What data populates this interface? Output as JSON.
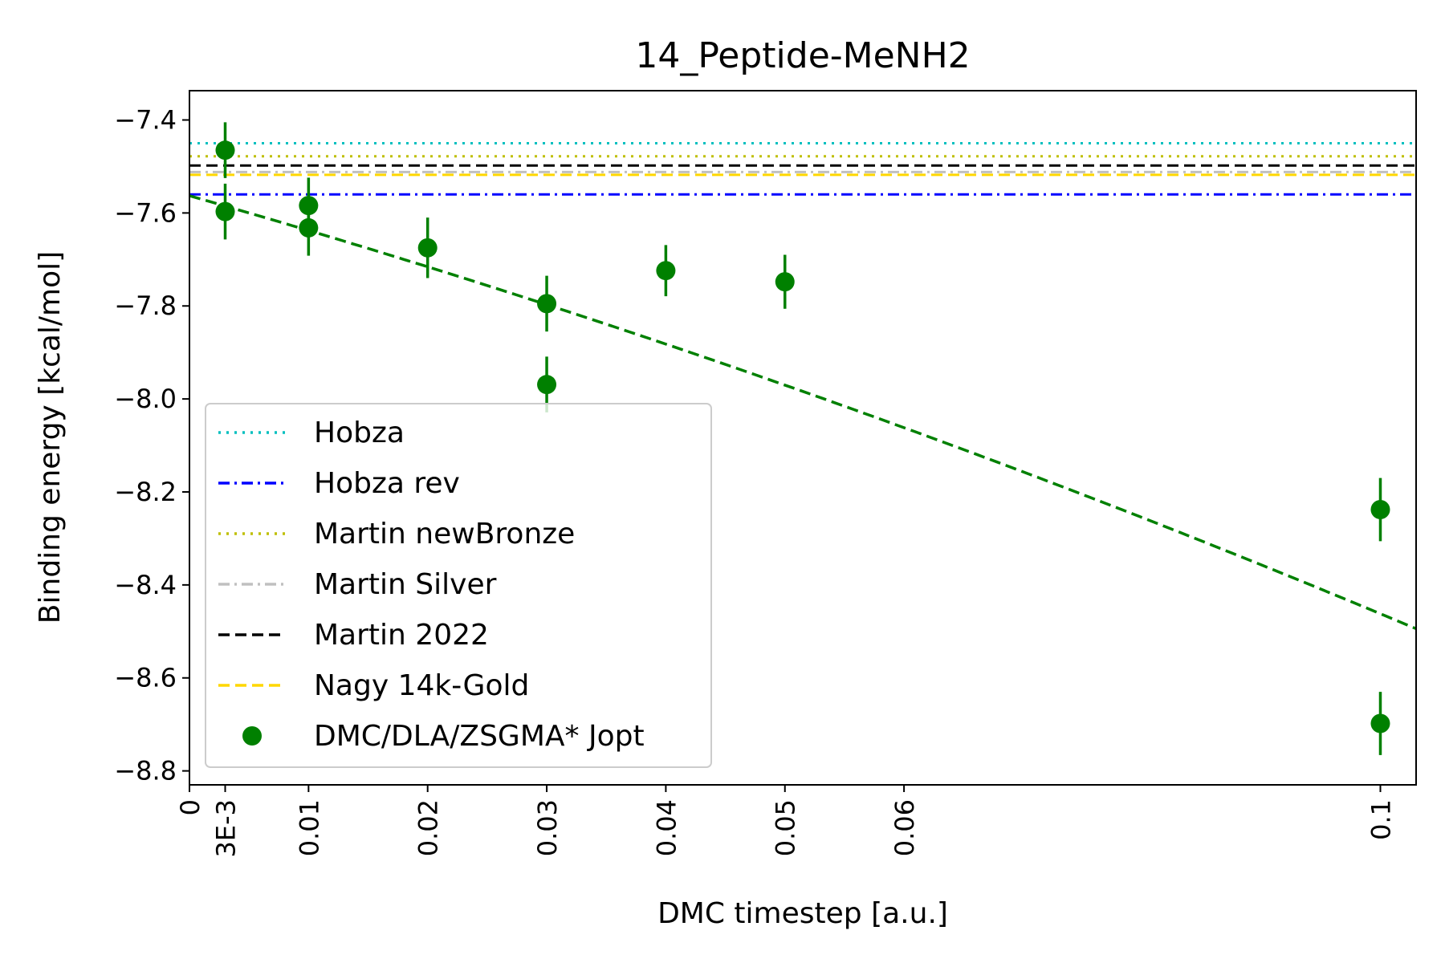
{
  "chart_data": {
    "type": "scatter",
    "title": "14_Peptide-MeNH2",
    "xlabel": "DMC timestep [a.u.]",
    "ylabel": "Binding energy [kcal/mol]",
    "xlim": [
      0,
      0.103
    ],
    "ylim": [
      -8.83,
      -7.337
    ],
    "x_ticks": [
      {
        "value": 0,
        "label": "0"
      },
      {
        "value": 0.003,
        "label": "3E-3"
      },
      {
        "value": 0.01,
        "label": "0.01"
      },
      {
        "value": 0.02,
        "label": "0.02"
      },
      {
        "value": 0.03,
        "label": "0.03"
      },
      {
        "value": 0.04,
        "label": "0.04"
      },
      {
        "value": 0.05,
        "label": "0.05"
      },
      {
        "value": 0.06,
        "label": "0.06"
      },
      {
        "value": 0.1,
        "label": "0.1"
      }
    ],
    "y_ticks": [
      {
        "value": -7.4,
        "label": "−7.4"
      },
      {
        "value": -7.6,
        "label": "−7.6"
      },
      {
        "value": -7.8,
        "label": "−7.8"
      },
      {
        "value": -8.0,
        "label": "−8.0"
      },
      {
        "value": -8.2,
        "label": "−8.2"
      },
      {
        "value": -8.4,
        "label": "−8.4"
      },
      {
        "value": -8.6,
        "label": "−8.6"
      },
      {
        "value": -8.8,
        "label": "−8.8"
      }
    ],
    "grid": false,
    "legend_position": "lower-left",
    "reference_lines": [
      {
        "name": "Hobza",
        "y": -7.45,
        "color": "#00bfbf",
        "style": "dotted"
      },
      {
        "name": "Hobza rev",
        "y": -7.56,
        "color": "#0000ff",
        "style": "dashdot"
      },
      {
        "name": "Martin newBronze",
        "y": -7.478,
        "color": "#bfbf00",
        "style": "dotted"
      },
      {
        "name": "Martin Silver",
        "y": -7.512,
        "color": "#c0c0c0",
        "style": "dashdot"
      },
      {
        "name": "Martin 2022",
        "y": -7.498,
        "color": "#000000",
        "style": "dashed"
      },
      {
        "name": "Nagy 14k-Gold",
        "y": -7.518,
        "color": "#ffd700",
        "style": "dashed"
      }
    ],
    "series": [
      {
        "name": "DMC/DLA/ZSGMA* Jopt",
        "color": "#008000",
        "x": [
          0.003,
          0.003,
          0.01,
          0.01,
          0.02,
          0.03,
          0.03,
          0.04,
          0.05,
          0.1,
          0.1
        ],
        "y": [
          -7.465,
          -7.597,
          -7.584,
          -7.632,
          -7.675,
          -7.795,
          -7.969,
          -7.724,
          -7.748,
          -8.238,
          -8.698
        ],
        "yerr": [
          0.06,
          0.06,
          0.06,
          0.06,
          0.065,
          0.06,
          0.06,
          0.055,
          0.058,
          0.068,
          0.068
        ]
      }
    ],
    "fit": {
      "color": "#008000",
      "style": "dashed",
      "coefficients": [
        -7.563,
        -7.3,
        -16.9
      ]
    }
  }
}
